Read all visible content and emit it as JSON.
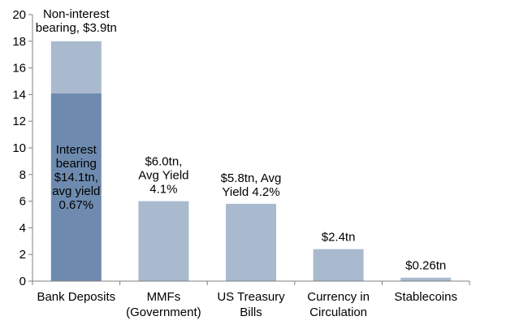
{
  "chart_data": {
    "type": "bar",
    "categories": [
      [
        "Bank Deposits"
      ],
      [
        "MMFs",
        "(Government)"
      ],
      [
        "US Treasury",
        "Bills"
      ],
      [
        "Currency in",
        "Circulation"
      ],
      [
        "Stablecoins"
      ]
    ],
    "series": [
      {
        "values": [
          14.1,
          6.0,
          5.8,
          2.4,
          0.26
        ]
      },
      {
        "values": [
          3.9,
          0,
          0,
          0,
          0
        ]
      }
    ],
    "yticks": [
      0,
      2,
      4,
      6,
      8,
      10,
      12,
      14,
      16,
      18,
      20
    ],
    "ylim": [
      0,
      20
    ],
    "grid": false,
    "annotations": [
      {
        "lines": [
          "Non-interest",
          "bearing, $3.9tn"
        ],
        "category": 0
      },
      {
        "lines": [
          "Interest",
          "bearing",
          "$14.1tn,",
          "avg yield",
          "0.67%"
        ],
        "category": 0
      },
      {
        "lines": [
          "$6.0tn,",
          "Avg Yield",
          "4.1%"
        ],
        "category": 1
      },
      {
        "lines": [
          "$5.8tn, Avg",
          "Yield 4.2%"
        ],
        "category": 2
      },
      {
        "lines": [
          "$2.4tn"
        ],
        "category": 3
      },
      {
        "lines": [
          "$0.26tn"
        ],
        "category": 4
      }
    ],
    "colors": {
      "interest": "#6E8BAF",
      "noninterest": "#A9BACF",
      "single": "#A9BACF",
      "axis": "#808080"
    }
  }
}
